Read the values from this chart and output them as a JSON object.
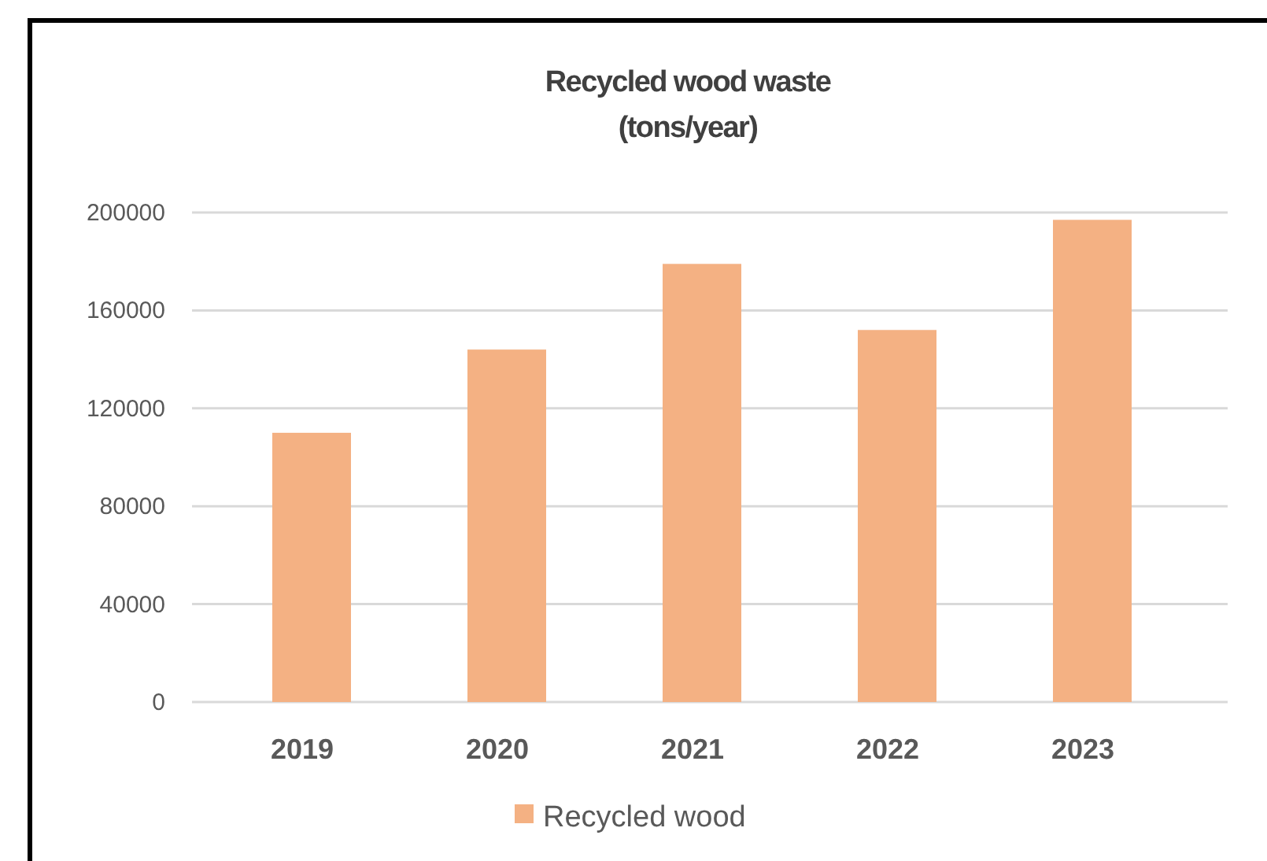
{
  "chart_data": {
    "type": "bar",
    "title": "Recycled wood waste",
    "subtitle": "(tons/year)",
    "categories": [
      "2019",
      "2020",
      "2021",
      "2022",
      "2023"
    ],
    "series": [
      {
        "name": "Recycled wood",
        "color": "#f4b183",
        "values": [
          110000,
          144000,
          179000,
          152000,
          197000
        ]
      }
    ],
    "ylim": [
      0,
      200000
    ],
    "yticks": [
      0,
      40000,
      80000,
      120000,
      160000,
      200000
    ],
    "grid": "y",
    "legend": "bottom"
  }
}
